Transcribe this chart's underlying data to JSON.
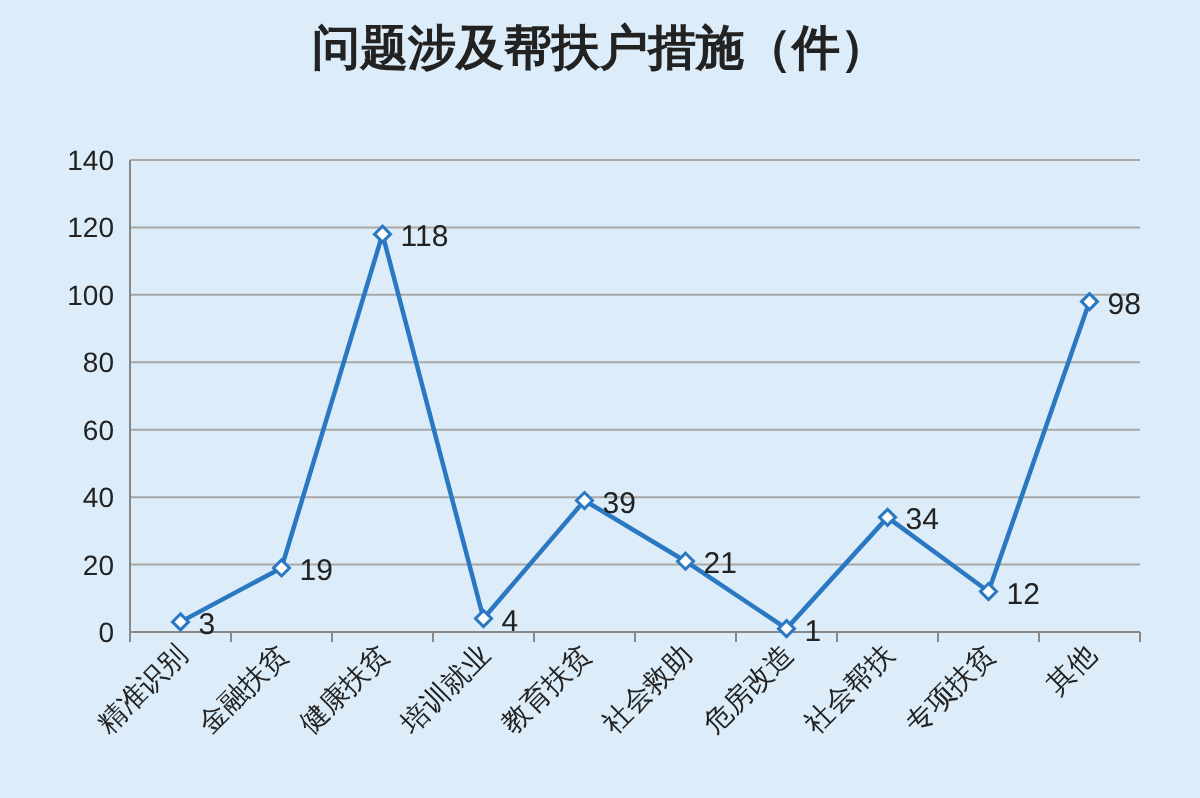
{
  "chart_data": {
    "type": "line",
    "title": "问题涉及帮扶户措施（件）",
    "categories": [
      "精准识别",
      "金融扶贫",
      "健康扶贫",
      "培训就业",
      "教育扶贫",
      "社会救助",
      "危房改造",
      "社会帮扶",
      "专项扶贫",
      "其他"
    ],
    "values": [
      3,
      19,
      118,
      4,
      39,
      21,
      1,
      34,
      12,
      98
    ],
    "color": "#2a78c2",
    "ylim": [
      0,
      140
    ],
    "yticks": [
      0,
      20,
      40,
      60,
      80,
      100,
      120,
      140
    ],
    "grid": "y",
    "marker": "diamond",
    "line_style": "solid",
    "data_labels": true
  }
}
